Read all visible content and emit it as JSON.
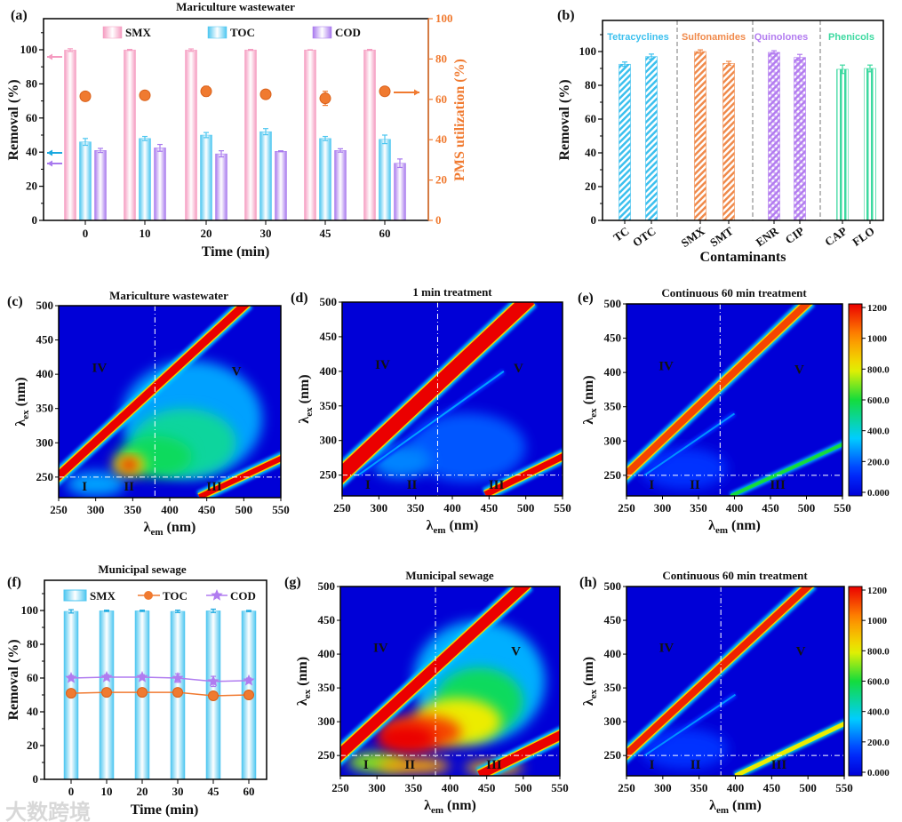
{
  "figure": {
    "watermark": "大数跨境"
  },
  "chart_data": [
    {
      "id": "a",
      "type": "bar",
      "panel_label": "(a)",
      "title": "Mariculture wastewater",
      "xlabel": "Time (min)",
      "ylabel": "Removal (%)",
      "y2label": "PMS utilization (%)",
      "categories": [
        "0",
        "10",
        "20",
        "30",
        "45",
        "60"
      ],
      "ylim": [
        0,
        118
      ],
      "y2lim": [
        0,
        100
      ],
      "yticks": [
        "0",
        "20",
        "40",
        "60",
        "80",
        "100"
      ],
      "y2ticks": [
        "0",
        "20",
        "40",
        "60",
        "80",
        "100"
      ],
      "legend": "top",
      "series": [
        {
          "name": "SMX",
          "type": "bar",
          "axis": "left",
          "color": "#f59bc0",
          "values": [
            99.8,
            99.9,
            99.8,
            99.9,
            99.9,
            99.9
          ],
          "errors": [
            0.8,
            0.3,
            0.7,
            0.3,
            0.1,
            0.3
          ]
        },
        {
          "name": "TOC",
          "type": "bar",
          "axis": "left",
          "color": "#4cc6f0",
          "values": [
            46,
            48,
            50,
            52,
            48,
            47.5
          ],
          "errors": [
            2,
            1.2,
            1.5,
            1.8,
            1.2,
            2.5
          ]
        },
        {
          "name": "COD",
          "type": "bar",
          "axis": "left",
          "color": "#a879ee",
          "values": [
            41,
            42.5,
            39,
            40.5,
            41,
            33.5
          ],
          "errors": [
            1.2,
            2,
            1.8,
            0.3,
            1,
            2.5
          ]
        },
        {
          "name": "PMS utilization",
          "type": "scatter",
          "axis": "right",
          "color": "#f07a30",
          "values": [
            61.5,
            62,
            64,
            62.5,
            60.5,
            64
          ],
          "errors": [
            1.5,
            1.5,
            2.5,
            1.5,
            3.5,
            2
          ]
        }
      ]
    },
    {
      "id": "b",
      "type": "bar",
      "panel_label": "(b)",
      "xlabel": "Contaminants",
      "ylabel": "Removal (%)",
      "ylim": [
        0,
        118
      ],
      "yticks": [
        "0",
        "20",
        "40",
        "60",
        "80",
        "100"
      ],
      "groups": [
        {
          "name": "Tetracyclines",
          "color": "#3cc0ee",
          "categories": [
            "TC",
            "OTC"
          ],
          "values": [
            92.5,
            97
          ],
          "errors": [
            1.3,
            1.5
          ]
        },
        {
          "name": "Sulfonamides",
          "color": "#f08a4b",
          "categories": [
            "SMX",
            "SMT"
          ],
          "values": [
            100,
            93
          ],
          "errors": [
            1,
            1.2
          ]
        },
        {
          "name": "Quinolones",
          "color": "#b37cf0",
          "categories": [
            "ENR",
            "CIP"
          ],
          "values": [
            99.5,
            96.5
          ],
          "errors": [
            1,
            1.8
          ]
        },
        {
          "name": "Phenicols",
          "color": "#3dd9a0",
          "categories": [
            "CAP",
            "FLO"
          ],
          "values": [
            89.5,
            90
          ],
          "errors": [
            2.5,
            2
          ]
        }
      ]
    },
    {
      "id": "c",
      "type": "heatmap",
      "panel_label": "(c)",
      "title": "Mariculture wastewater",
      "xlabel": {
        "base": "λ",
        "sub": "em",
        "unit": " (nm)"
      },
      "ylabel": {
        "base": "λ",
        "sub": "ex",
        "unit": " (nm)"
      },
      "xlim": [
        250,
        550
      ],
      "ylim": [
        220,
        500
      ],
      "xticks": [
        "250",
        "300",
        "350",
        "400",
        "450",
        "500",
        "550"
      ],
      "yticks": [
        "250",
        "300",
        "350",
        "400",
        "450",
        "500"
      ],
      "regions": [
        "I",
        "II",
        "III",
        "IV",
        "V"
      ],
      "features": [
        {
          "em": 430,
          "ex": 335,
          "rem": 95,
          "rex": 85,
          "value": 300
        },
        {
          "em": 420,
          "ex": 300,
          "rem": 70,
          "rex": 50,
          "value": 480
        },
        {
          "em": 380,
          "ex": 280,
          "rem": 50,
          "rex": 30,
          "value": 560
        },
        {
          "em": 300,
          "ex": 240,
          "rem": 40,
          "rex": 18,
          "value": 300
        },
        {
          "em": 345,
          "ex": 268,
          "rem": 22,
          "rex": 16,
          "value": 800
        },
        {
          "em": 345,
          "ex": 268,
          "rem": 12,
          "rex": 9,
          "value": 1200
        }
      ],
      "scatter_lines": [
        {
          "from": [
            240,
            242
          ],
          "to": [
            505,
            505
          ],
          "value": 1200
        },
        {
          "from": [
            440,
            221
          ],
          "to": [
            560,
            282
          ],
          "value": 1200
        }
      ]
    },
    {
      "id": "d",
      "type": "heatmap",
      "panel_label": "(d)",
      "title": "1 min treatment",
      "xlabel": {
        "base": "λ",
        "sub": "em",
        "unit": " (nm)"
      },
      "ylabel": {
        "base": "λ",
        "sub": "ex",
        "unit": " (nm)"
      },
      "xlim": [
        250,
        550
      ],
      "ylim": [
        220,
        500
      ],
      "xticks": [
        "250",
        "300",
        "350",
        "400",
        "450",
        "500",
        "550"
      ],
      "yticks": [
        "250",
        "300",
        "350",
        "400",
        "450",
        "500"
      ],
      "regions": [
        "I",
        "II",
        "III",
        "IV",
        "V"
      ],
      "features": [
        {
          "em": 420,
          "ex": 290,
          "rem": 80,
          "rex": 50,
          "value": 200
        },
        {
          "em": 330,
          "ex": 270,
          "rem": 40,
          "rex": 25,
          "value": 260
        }
      ],
      "scatter_lines": [
        {
          "from": [
            240,
            242
          ],
          "to": [
            505,
            505
          ],
          "value": 1200
        },
        {
          "from": [
            272,
            250
          ],
          "to": [
            470,
            400
          ],
          "value": 300
        },
        {
          "from": [
            445,
            222
          ],
          "to": [
            560,
            282
          ],
          "value": 1200
        }
      ]
    },
    {
      "id": "e",
      "type": "heatmap",
      "panel_label": "(e)",
      "title": "Continuous 60 min treatment",
      "xlabel": {
        "base": "λ",
        "sub": "em",
        "unit": " (nm)"
      },
      "ylabel": {
        "base": "λ",
        "sub": "ex",
        "unit": " (nm)"
      },
      "xlim": [
        250,
        550
      ],
      "ylim": [
        220,
        500
      ],
      "xticks": [
        "250",
        "300",
        "350",
        "400",
        "450",
        "500",
        "550"
      ],
      "yticks": [
        "250",
        "300",
        "350",
        "400",
        "450",
        "500"
      ],
      "regions": [
        "I",
        "II",
        "III",
        "IV",
        "V"
      ],
      "colorbar": {
        "ticks": [
          "0.000",
          "200.0",
          "400.0",
          "600.0",
          "800.0",
          "1000",
          "1200"
        ],
        "range": [
          0,
          1200
        ]
      },
      "features": [
        {
          "em": 330,
          "ex": 260,
          "rem": 60,
          "rex": 30,
          "value": 150
        }
      ],
      "scatter_lines": [
        {
          "from": [
            240,
            242
          ],
          "to": [
            505,
            505
          ],
          "value": 1100
        },
        {
          "from": [
            275,
            250
          ],
          "to": [
            400,
            340
          ],
          "value": 280
        },
        {
          "from": [
            395,
            220
          ],
          "to": [
            560,
            300
          ],
          "value": 600
        }
      ]
    },
    {
      "id": "f",
      "type": "bar",
      "panel_label": "(f)",
      "title": "Municipal sewage",
      "xlabel": "Time (min)",
      "ylabel": "Removal (%)",
      "categories": [
        "0",
        "10",
        "20",
        "30",
        "45",
        "60"
      ],
      "ylim": [
        0,
        118
      ],
      "yticks": [
        "0",
        "20",
        "40",
        "60",
        "80",
        "100"
      ],
      "legend": "top",
      "series": [
        {
          "name": "SMX",
          "type": "bar",
          "color": "#4cc6f0",
          "values": [
            99.5,
            99.8,
            99.8,
            99.5,
            99.8,
            99.7
          ],
          "errors": [
            1,
            0.4,
            0.4,
            0.7,
            1,
            0.4
          ]
        },
        {
          "name": "TOC",
          "type": "line",
          "marker": "circle",
          "color": "#f07a30",
          "values": [
            51,
            51.5,
            51.5,
            51.5,
            49.5,
            50
          ],
          "errors": [
            0.8,
            0.8,
            0.8,
            0.8,
            1,
            0.8
          ]
        },
        {
          "name": "COD",
          "type": "line",
          "marker": "star",
          "color": "#b07cf0",
          "values": [
            60,
            60.5,
            60.5,
            60,
            58,
            58.5
          ],
          "errors": [
            1.5,
            1.5,
            1.5,
            2.5,
            3,
            1.5
          ]
        }
      ]
    },
    {
      "id": "g",
      "type": "heatmap",
      "panel_label": "(g)",
      "title": "Municipal sewage",
      "xlabel": {
        "base": "λ",
        "sub": "em",
        "unit": " (nm)"
      },
      "ylabel": {
        "base": "λ",
        "sub": "ex",
        "unit": " (nm)"
      },
      "xlim": [
        250,
        550
      ],
      "ylim": [
        220,
        500
      ],
      "xticks": [
        "250",
        "300",
        "350",
        "400",
        "450",
        "500",
        "550"
      ],
      "yticks": [
        "250",
        "300",
        "350",
        "400",
        "450",
        "500"
      ],
      "regions": [
        "I",
        "II",
        "III",
        "IV",
        "V"
      ],
      "features": [
        {
          "em": 440,
          "ex": 360,
          "rem": 90,
          "rex": 90,
          "value": 320
        },
        {
          "em": 440,
          "ex": 330,
          "rem": 60,
          "rex": 50,
          "value": 560
        },
        {
          "em": 410,
          "ex": 300,
          "rem": 60,
          "rex": 35,
          "value": 800
        },
        {
          "em": 300,
          "ex": 240,
          "rem": 40,
          "rex": 15,
          "value": 700
        },
        {
          "em": 350,
          "ex": 235,
          "rem": 50,
          "rex": 12,
          "value": 950
        },
        {
          "em": 460,
          "ex": 232,
          "rem": 40,
          "rex": 10,
          "value": 900
        },
        {
          "em": 360,
          "ex": 285,
          "rem": 55,
          "rex": 25,
          "value": 1100
        },
        {
          "em": 340,
          "ex": 275,
          "rem": 40,
          "rex": 20,
          "value": 1250
        }
      ],
      "scatter_lines": [
        {
          "from": [
            240,
            242
          ],
          "to": [
            505,
            505
          ],
          "value": 1200
        },
        {
          "from": [
            440,
            221
          ],
          "to": [
            560,
            285
          ],
          "value": 1200
        }
      ]
    },
    {
      "id": "h",
      "type": "heatmap",
      "panel_label": "(h)",
      "title": "Continuous 60 min treatment",
      "xlabel": {
        "base": "λ",
        "sub": "em",
        "unit": " (nm)"
      },
      "ylabel": {
        "base": "λ",
        "sub": "ex",
        "unit": " (nm)"
      },
      "xlim": [
        250,
        550
      ],
      "ylim": [
        220,
        500
      ],
      "xticks": [
        "250",
        "300",
        "350",
        "400",
        "450",
        "500",
        "550"
      ],
      "yticks": [
        "250",
        "300",
        "350",
        "400",
        "450",
        "500"
      ],
      "regions": [
        "I",
        "II",
        "III",
        "IV",
        "V"
      ],
      "colorbar": {
        "ticks": [
          "0.000",
          "200.0",
          "400.0",
          "600.0",
          "800.0",
          "1000",
          "1200"
        ],
        "range": [
          0,
          1200
        ]
      },
      "features": [
        {
          "em": 330,
          "ex": 260,
          "rem": 60,
          "rex": 30,
          "value": 150
        }
      ],
      "scatter_lines": [
        {
          "from": [
            240,
            242
          ],
          "to": [
            505,
            505
          ],
          "value": 1150
        },
        {
          "from": [
            275,
            250
          ],
          "to": [
            400,
            340
          ],
          "value": 280
        },
        {
          "from": [
            400,
            220
          ],
          "to": [
            560,
            302
          ],
          "value": 800
        }
      ]
    }
  ]
}
